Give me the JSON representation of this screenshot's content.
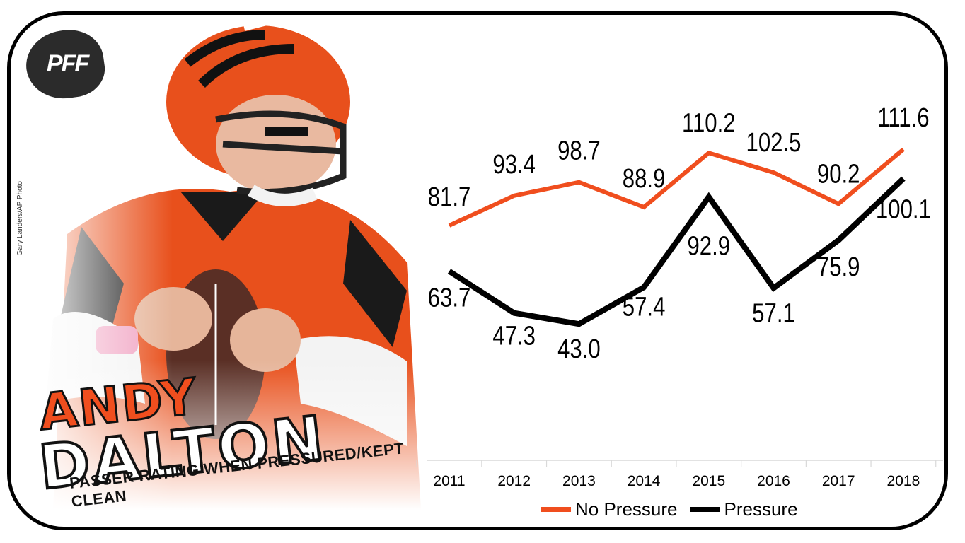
{
  "header": {
    "brand": "PFF",
    "photo_credit": "Gary Landers/AP Photo",
    "first_name": "ANDY",
    "last_name": "DALTON",
    "subtitle": "PASSER RATING WHEN PRESSURED/KEPT CLEAN"
  },
  "colors": {
    "no_pressure": "#f04e1e",
    "pressure": "#000000",
    "jersey_orange": "#e8501c",
    "jersey_black": "#1a1a1a"
  },
  "chart_data": {
    "type": "line",
    "title": "",
    "xlabel": "",
    "ylabel": "",
    "categories": [
      "2011",
      "2012",
      "2013",
      "2014",
      "2015",
      "2016",
      "2017",
      "2018"
    ],
    "ylim": [
      0,
      130
    ],
    "grid": false,
    "legend_position": "bottom",
    "series": [
      {
        "name": "No Pressure",
        "color": "#f04e1e",
        "values": [
          81.7,
          93.4,
          98.7,
          88.9,
          110.2,
          102.5,
          90.2,
          111.6
        ],
        "labels": [
          "81.7",
          "93.4",
          "98.7",
          "88.9",
          "110.2",
          "102.5",
          "90.2",
          "111.6"
        ]
      },
      {
        "name": "Pressure",
        "color": "#000000",
        "values": [
          63.7,
          47.3,
          43.0,
          57.4,
          92.9,
          57.1,
          75.9,
          100.1
        ],
        "labels": [
          "63.7",
          "47.3",
          "43.0",
          "57.4",
          "92.9",
          "57.1",
          "75.9",
          "100.1"
        ]
      }
    ]
  }
}
